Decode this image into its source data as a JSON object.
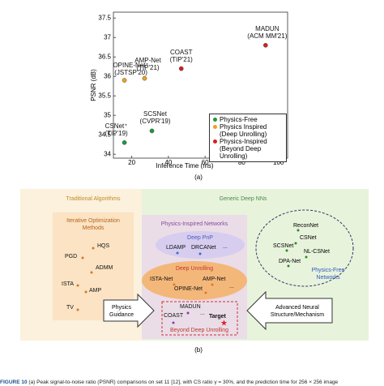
{
  "chart_data": {
    "type": "scatter",
    "x_label": "Inference Time (ms)",
    "y_label": "PSNR (dB)",
    "xlim": [
      10,
      105
    ],
    "ylim": [
      33.9,
      37.65
    ],
    "xticks": [
      20,
      40,
      60,
      80,
      100
    ],
    "yticks": [
      34,
      34.5,
      35,
      35.5,
      36,
      36.5,
      37,
      37.5
    ],
    "legend": "lower right",
    "series": [
      {
        "name": "Physics-Free",
        "color": "#1e9a3a",
        "x": [
          16,
          31
        ],
        "values": [
          34.3,
          34.6
        ],
        "point_labels": [
          "CSNet⁺\n(TIP'19)",
          "SCSNet\n(CVPR'19)"
        ]
      },
      {
        "name": "Physics Inspired\n(Deep Unrolling)",
        "color": "#f0a020",
        "x": [
          16,
          27
        ],
        "values": [
          35.9,
          35.95
        ],
        "point_labels": [
          "OPINE-Net⁺\n(JSTSP'20)",
          "AMP-Net\n(TIP'21)"
        ]
      },
      {
        "name": "Physics-Inspired\n(Beyond Deep Unrolling)",
        "color": "#d42020",
        "x": [
          47,
          93
        ],
        "values": [
          36.2,
          36.8
        ],
        "point_labels": [
          "COAST\n(TIP'21)",
          "MADUN\n(ACM MM'21)"
        ]
      }
    ]
  },
  "chart_caption": "(a)",
  "diagram": {
    "traditional_title": "Traditional Algorithms",
    "deep_title": "Generic Deep NNs",
    "iterative": {
      "title": [
        "Iterative Optimization",
        "Methods"
      ],
      "items": [
        "HQS",
        "PGD",
        "ADMM",
        "ISTA",
        "AMP",
        "TV"
      ]
    },
    "physics": {
      "title": "Physics-Inspired Networks",
      "pnp": {
        "title": "Deep PnP",
        "items": [
          "LDAMP",
          "DRCANet",
          "..."
        ]
      },
      "unrolling": {
        "title": "Deep Unrolling",
        "items": [
          "ISTA-Net",
          "AMP-Net",
          "OPINE-Net",
          "..."
        ]
      },
      "beyond": {
        "title": "Beyond Deep Unrolling",
        "items": [
          "MADUN",
          "COAST",
          "..."
        ],
        "target": "Target"
      }
    },
    "arrows": {
      "left": [
        "Physics",
        "Guidance"
      ],
      "right": [
        "Advanced Neural",
        "Structure/Mechanism"
      ]
    },
    "free": {
      "title": [
        "Physics-Free",
        "Networks"
      ],
      "items": [
        "ReconNet",
        "CSNet",
        "SCSNet",
        "NL-CSNet",
        "DPA-Net"
      ]
    }
  },
  "diagram_caption": "(b)",
  "figure_caption": {
    "label": "FIGURE 10",
    "text": "(a) Peak signal-to-noise ratio (PSNR) comparisons on set 11 [12], with CS ratio γ = 30%, and the prediction time for 256 × 256 image"
  }
}
